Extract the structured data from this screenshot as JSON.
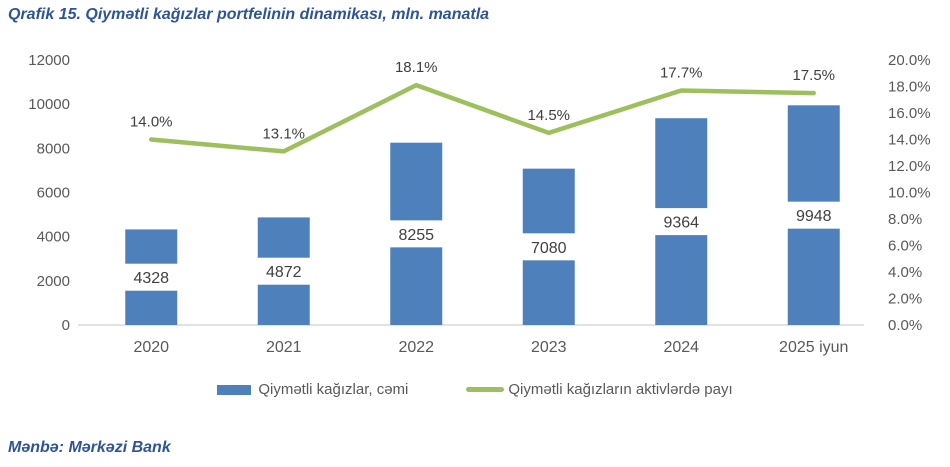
{
  "title": "Qrafik 15. Qiymətli kağızlar portfelinin dinamikası, mln. manatla",
  "source": "Mənbə: Mərkəzi Bank",
  "legend": {
    "bars_label": "Qiymətli kağızlar, cəmi",
    "line_label": "Qiymətli kağızların aktivlərdə payı"
  },
  "colors": {
    "bar": "#4E81BB",
    "line": "#9DC05C",
    "title_text": "#2F5496",
    "axis_text": "#595959",
    "value_text": "#404040",
    "baseline": "#D9D9D9",
    "value_box": "#FFFFFF"
  },
  "chart_data": {
    "type": "bar+line combo",
    "title": "Qrafik 15. Qiymətli kağızlar portfelinin dinamikası, mln. manatla",
    "categories": [
      "2020",
      "2021",
      "2022",
      "2023",
      "2024",
      "2025 iyun"
    ],
    "series": [
      {
        "name": "Qiymətli kağızlar, cəmi",
        "type": "bar",
        "axis": "left",
        "values": [
          4328,
          4872,
          8255,
          7080,
          9364,
          9948
        ],
        "labels": [
          "4328",
          "4872",
          "8255",
          "7080",
          "9364",
          "9948"
        ]
      },
      {
        "name": "Qiymətli kağızların aktivlərdə payı",
        "type": "line",
        "axis": "right",
        "values": [
          14.0,
          13.1,
          18.1,
          14.5,
          17.7,
          17.5
        ],
        "labels": [
          "14.0%",
          "13.1%",
          "18.1%",
          "14.5%",
          "17.7%",
          "17.5%"
        ]
      }
    ],
    "left_axis": {
      "min": 0,
      "max": 12000,
      "step": 2000,
      "tick_labels": [
        "12000",
        "10000",
        "8000",
        "6000",
        "4000",
        "2000",
        "0"
      ]
    },
    "right_axis": {
      "min": 0,
      "max": 20,
      "step": 2,
      "tick_labels": [
        "20.0%",
        "18.0%",
        "16.0%",
        "14.0%",
        "12.0%",
        "10.0%",
        "8.0%",
        "6.0%",
        "4.0%",
        "2.0%",
        "0.0%"
      ]
    },
    "grid": "off",
    "legend_position": "bottom"
  }
}
